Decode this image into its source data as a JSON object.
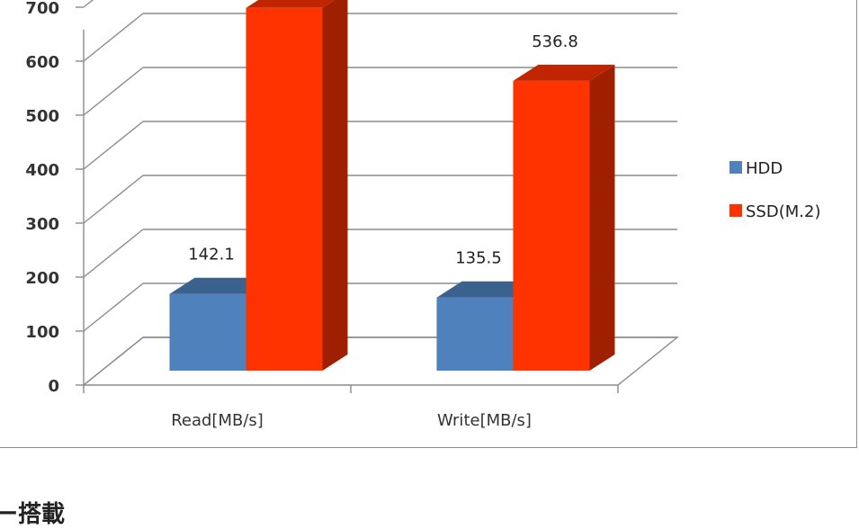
{
  "chart_data": {
    "type": "bar",
    "style": "3d-column",
    "categories": [
      "Read[MB/s]",
      "Write[MB/s]"
    ],
    "series": [
      {
        "name": "HDD",
        "values": [
          142.1,
          135.5
        ],
        "color": "#4f81bd",
        "data_labels": [
          "142.1",
          "135.5"
        ]
      },
      {
        "name": "SSD(M.2)",
        "values": [
          672,
          536.8
        ],
        "color": "#ff3300",
        "data_labels": [
          null,
          "536.8"
        ]
      }
    ],
    "y_ticks": [
      0,
      100,
      200,
      300,
      400,
      500,
      600,
      700
    ],
    "ylim": [
      0,
      700
    ],
    "grid": true,
    "legend": "right"
  },
  "page": {
    "heading": "ー搭載"
  }
}
